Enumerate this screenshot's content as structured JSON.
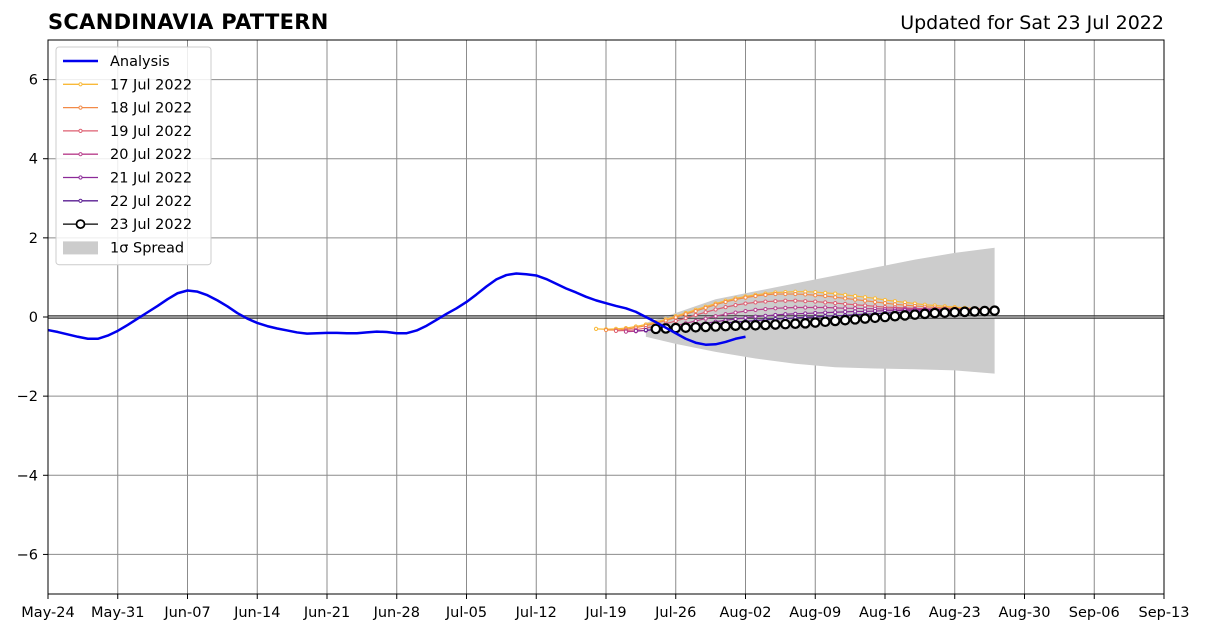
{
  "header": {
    "title": "SCANDINAVIA PATTERN",
    "updated": "Updated for Sat 23 Jul 2022"
  },
  "chart_data": {
    "type": "line",
    "xlim": [
      "2022-05-24",
      "2022-09-13"
    ],
    "ylim": [
      -7,
      7
    ],
    "x_ticks": [
      "2022-05-24",
      "2022-05-31",
      "2022-06-07",
      "2022-06-14",
      "2022-06-21",
      "2022-06-28",
      "2022-07-05",
      "2022-07-12",
      "2022-07-19",
      "2022-07-26",
      "2022-08-02",
      "2022-08-09",
      "2022-08-16",
      "2022-08-23",
      "2022-08-30",
      "2022-09-06",
      "2022-09-13"
    ],
    "x_tick_labels": [
      "May-24",
      "May-31",
      "Jun-07",
      "Jun-14",
      "Jun-21",
      "Jun-28",
      "Jul-05",
      "Jul-12",
      "Jul-19",
      "Jul-26",
      "Aug-02",
      "Aug-09",
      "Aug-16",
      "Aug-23",
      "Aug-30",
      "Sep-06",
      "Sep-13"
    ],
    "y_ticks": [
      -6,
      -4,
      -2,
      0,
      2,
      4,
      6
    ],
    "y_tick_labels": [
      "−6",
      "−4",
      "−2",
      "0",
      "2",
      "4",
      "6"
    ],
    "grid": true,
    "legend_position": "top-left",
    "analysis": {
      "name": "Analysis",
      "color": "#0000ee",
      "start": "2022-05-24",
      "values": [
        -0.33,
        -0.38,
        -0.44,
        -0.5,
        -0.55,
        -0.55,
        -0.47,
        -0.35,
        -0.2,
        -0.04,
        0.12,
        0.28,
        0.45,
        0.6,
        0.67,
        0.64,
        0.55,
        0.42,
        0.27,
        0.1,
        -0.04,
        -0.15,
        -0.23,
        -0.29,
        -0.34,
        -0.39,
        -0.42,
        -0.41,
        -0.4,
        -0.4,
        -0.41,
        -0.41,
        -0.39,
        -0.37,
        -0.38,
        -0.41,
        -0.41,
        -0.34,
        -0.22,
        -0.07,
        0.08,
        0.22,
        0.38,
        0.57,
        0.77,
        0.95,
        1.06,
        1.1,
        1.08,
        1.05,
        0.96,
        0.84,
        0.72,
        0.62,
        0.51,
        0.42,
        0.35,
        0.28,
        0.22,
        0.13,
        0.0,
        -0.13,
        -0.27,
        -0.41,
        -0.55,
        -0.65,
        -0.7,
        -0.69,
        -0.63,
        -0.55,
        -0.5
      ]
    },
    "forecasts": [
      {
        "name": "17 Jul 2022",
        "color": "#f9b938",
        "start": "2022-07-18",
        "values": [
          -0.3,
          -0.31,
          -0.3,
          -0.28,
          -0.24,
          -0.19,
          -0.13,
          -0.06,
          0.02,
          0.1,
          0.18,
          0.26,
          0.34,
          0.41,
          0.47,
          0.52,
          0.56,
          0.59,
          0.62,
          0.63,
          0.64,
          0.64,
          0.63,
          0.61,
          0.59,
          0.56,
          0.53,
          0.5,
          0.47,
          0.43,
          0.4,
          0.37,
          0.34,
          0.31,
          0.29,
          0.27,
          0.25,
          0.23,
          0.22,
          0.21,
          0.2
        ]
      },
      {
        "name": "18 Jul 2022",
        "color": "#f28a48",
        "start": "2022-07-19",
        "values": [
          -0.33,
          -0.33,
          -0.31,
          -0.27,
          -0.22,
          -0.16,
          -0.09,
          -0.01,
          0.07,
          0.15,
          0.23,
          0.31,
          0.38,
          0.44,
          0.49,
          0.53,
          0.56,
          0.58,
          0.58,
          0.58,
          0.57,
          0.55,
          0.53,
          0.5,
          0.47,
          0.44,
          0.41,
          0.38,
          0.35,
          0.32,
          0.3,
          0.28,
          0.26,
          0.24,
          0.23,
          0.22,
          0.21,
          0.21,
          0.21,
          0.21
        ]
      },
      {
        "name": "19 Jul 2022",
        "color": "#dd5f71",
        "start": "2022-07-20",
        "values": [
          -0.35,
          -0.34,
          -0.32,
          -0.28,
          -0.23,
          -0.17,
          -0.1,
          -0.03,
          0.05,
          0.12,
          0.19,
          0.25,
          0.3,
          0.34,
          0.37,
          0.39,
          0.4,
          0.41,
          0.41,
          0.4,
          0.39,
          0.37,
          0.35,
          0.33,
          0.31,
          0.29,
          0.27,
          0.25,
          0.24,
          0.23,
          0.22,
          0.21,
          0.2,
          0.2,
          0.2,
          0.2,
          0.2,
          0.2,
          0.2
        ]
      },
      {
        "name": "20 Jul 2022",
        "color": "#b83f8c",
        "start": "2022-07-21",
        "values": [
          -0.37,
          -0.36,
          -0.34,
          -0.31,
          -0.27,
          -0.22,
          -0.16,
          -0.1,
          -0.04,
          0.02,
          0.07,
          0.11,
          0.15,
          0.18,
          0.2,
          0.22,
          0.23,
          0.24,
          0.24,
          0.24,
          0.24,
          0.23,
          0.22,
          0.22,
          0.21,
          0.21,
          0.2,
          0.2,
          0.2,
          0.2,
          0.2,
          0.2,
          0.2,
          0.2,
          0.2,
          0.2,
          0.2,
          0.2
        ]
      },
      {
        "name": "21 Jul 2022",
        "color": "#8c2a98",
        "start": "2022-07-22",
        "values": [
          -0.35,
          -0.34,
          -0.32,
          -0.3,
          -0.27,
          -0.24,
          -0.2,
          -0.16,
          -0.12,
          -0.08,
          -0.05,
          -0.02,
          0.01,
          0.03,
          0.05,
          0.07,
          0.08,
          0.09,
          0.1,
          0.11,
          0.12,
          0.13,
          0.14,
          0.14,
          0.15,
          0.16,
          0.16,
          0.17,
          0.17,
          0.18,
          0.18,
          0.19,
          0.19,
          0.19,
          0.2,
          0.2,
          0.2
        ]
      },
      {
        "name": "22 Jul 2022",
        "color": "#5a1d92",
        "start": "2022-07-23",
        "values": [
          -0.33,
          -0.32,
          -0.3,
          -0.28,
          -0.26,
          -0.23,
          -0.2,
          -0.18,
          -0.15,
          -0.13,
          -0.11,
          -0.09,
          -0.07,
          -0.05,
          -0.04,
          -0.02,
          -0.01,
          0.0,
          0.02,
          0.03,
          0.04,
          0.06,
          0.07,
          0.08,
          0.1,
          0.11,
          0.12,
          0.13,
          0.14,
          0.15,
          0.16,
          0.17,
          0.17,
          0.18,
          0.18,
          0.19
        ]
      },
      {
        "name": "23 Jul 2022",
        "color": "#000000",
        "start": "2022-07-24",
        "values": [
          -0.3,
          -0.29,
          -0.28,
          -0.27,
          -0.26,
          -0.25,
          -0.24,
          -0.23,
          -0.22,
          -0.21,
          -0.21,
          -0.2,
          -0.19,
          -0.18,
          -0.17,
          -0.16,
          -0.14,
          -0.12,
          -0.1,
          -0.08,
          -0.06,
          -0.04,
          -0.02,
          0.0,
          0.02,
          0.04,
          0.06,
          0.08,
          0.1,
          0.11,
          0.12,
          0.13,
          0.14,
          0.15,
          0.16
        ]
      }
    ],
    "spread": {
      "name": "1σ Spread",
      "color": "#cccccc",
      "x": [
        "2022-07-23",
        "2022-07-26",
        "2022-07-30",
        "2022-08-03",
        "2022-08-07",
        "2022-08-11",
        "2022-08-15",
        "2022-08-19",
        "2022-08-23",
        "2022-08-27"
      ],
      "upper": [
        -0.15,
        0.1,
        0.45,
        0.65,
        0.85,
        1.05,
        1.25,
        1.45,
        1.62,
        1.75
      ],
      "lower": [
        -0.5,
        -0.68,
        -0.88,
        -1.05,
        -1.18,
        -1.27,
        -1.3,
        -1.32,
        -1.35,
        -1.43
      ]
    }
  }
}
